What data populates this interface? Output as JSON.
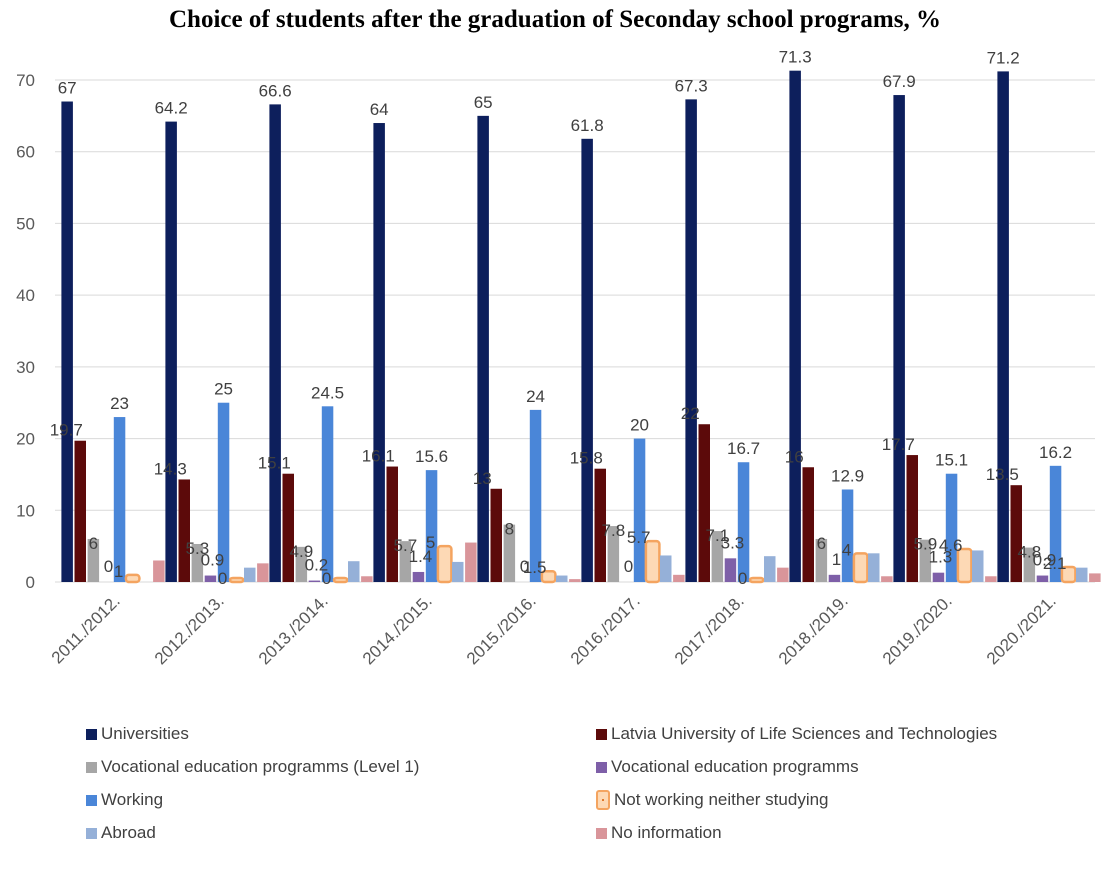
{
  "chart_data": {
    "type": "bar",
    "title": "Choice of students after the graduation of Seconday school programs, %",
    "categories": [
      "2011./2012.",
      "2012./2013.",
      "2013./2014.",
      "2014./2015.",
      "2015./2016.",
      "2016./2017.",
      "2017./2018.",
      "2018./2019.",
      "2019./2020.",
      "2020./2021."
    ],
    "ylim": [
      0,
      70
    ],
    "yticks": [
      0,
      10,
      20,
      30,
      40,
      50,
      60,
      70
    ],
    "grid": true,
    "legend_position": "bottom",
    "series": [
      {
        "name": "Universities",
        "color": "#0D1F5C",
        "values": [
          67,
          64.2,
          66.6,
          64,
          65,
          61.8,
          67.3,
          71.3,
          67.9,
          71.2
        ],
        "labels": [
          "67",
          "64.2",
          "66.6",
          "64",
          "65",
          "61.8",
          "67.3",
          "71.3",
          "67.9",
          "71.2"
        ]
      },
      {
        "name": "Latvia University of Life Sciences and Technologies",
        "color": "#5C0A0A",
        "values": [
          19.7,
          14.3,
          15.1,
          16.1,
          13,
          15.8,
          22,
          16,
          17.7,
          13.5
        ],
        "labels": [
          "19.7",
          "14.3",
          "15.1",
          "16.1",
          "13",
          "15.8",
          "22",
          "16",
          "17.7",
          "13.5"
        ]
      },
      {
        "name": "Vocational education programms (Level 1)",
        "color": "#A6A6A6",
        "values": [
          6,
          5.3,
          4.9,
          5.7,
          8,
          7.8,
          7.1,
          6,
          5.9,
          4.8
        ],
        "labels": [
          "6",
          "5.3",
          "4.9",
          "5.7",
          "8",
          "7.8",
          "7.1",
          "6",
          "5.9",
          "4.8"
        ]
      },
      {
        "name": "Vocational education programms",
        "color": "#7E5FA8",
        "values": [
          0,
          0.9,
          0.2,
          1.4,
          0,
          0,
          3.3,
          1,
          1.3,
          0.9
        ],
        "labels": [
          "0",
          "0.9",
          "0.2",
          "1.4",
          "0",
          "0",
          "3.3",
          "1",
          "1.3",
          "0.9"
        ]
      },
      {
        "name": "Working",
        "color": "#4A86D8",
        "values": [
          23,
          25,
          24.5,
          15.6,
          24,
          20,
          16.7,
          12.9,
          15.1,
          16.2
        ],
        "labels": [
          "23",
          "25",
          "24.5",
          "15.6",
          "24",
          "20",
          "16.7",
          "12.9",
          "15.1",
          "16.2"
        ]
      },
      {
        "name": "Not working neither studying",
        "color": "#F4A460",
        "values": [
          1,
          0,
          0,
          5,
          1.5,
          5.7,
          0,
          4,
          4.6,
          2.1
        ],
        "labels": [
          "1",
          "0",
          "0",
          "5",
          "1.5",
          "5.7",
          "0",
          "4",
          "4.6",
          "2.1"
        ]
      },
      {
        "name": "Abroad",
        "color": "#95B0D8",
        "values": [
          0,
          2,
          2.9,
          2.8,
          0.9,
          3.7,
          3.6,
          4,
          4.4,
          2
        ],
        "labels": []
      },
      {
        "name": "No information",
        "color": "#D9959A",
        "values": [
          3,
          2.6,
          0.8,
          5.5,
          0.4,
          1,
          2,
          0.8,
          0.8,
          1.2
        ],
        "labels": []
      }
    ]
  }
}
